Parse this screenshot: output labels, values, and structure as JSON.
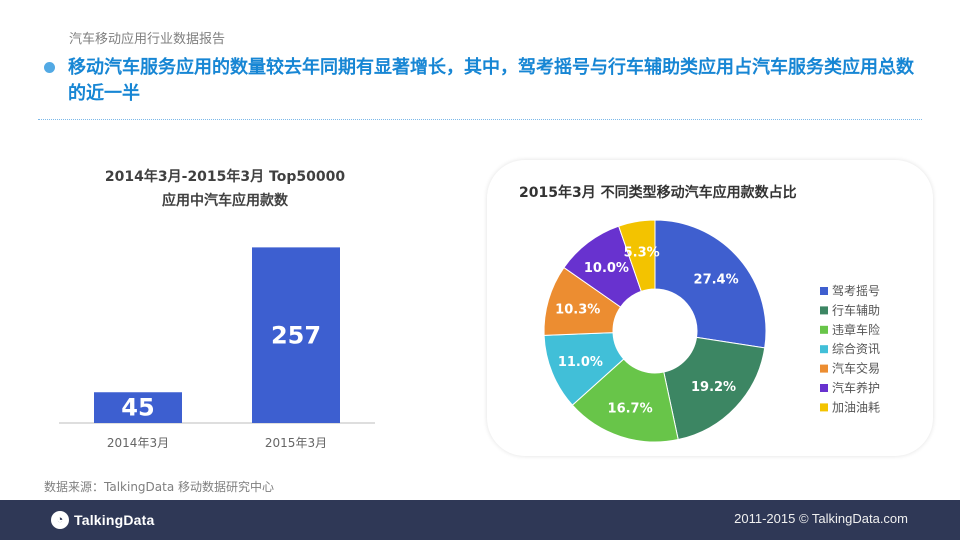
{
  "header": {
    "report_label": "汽车移动应用行业数据报告",
    "headline": "移动汽车服务应用的数量较去年同期有显著增长，其中，驾考摇号与行车辅助类应用占汽车服务类应用总数的近一半"
  },
  "footer": {
    "source": "数据来源：TalkingData 移动数据研究中心",
    "brand": "TalkingData",
    "copyright": "2011-2015 © TalkingData.com"
  },
  "colors": {
    "accent": "#1786d4",
    "bar": "#3d5fd0",
    "footer_bg": "#2f3856"
  },
  "chart_data": [
    {
      "type": "bar",
      "title": "2014年3月-2015年3月 Top50000",
      "subtitle": "应用中汽车应用款数",
      "categories": [
        "2014年3月",
        "2015年3月"
      ],
      "values": [
        45,
        257
      ],
      "data_labels": [
        "45",
        "257"
      ],
      "xlabel": "",
      "ylabel": "",
      "ylim": [
        0,
        300
      ],
      "grid": false,
      "color": "#3d5fd0"
    },
    {
      "type": "pie",
      "title": "2015年3月 不同类型移动汽车应用款数占比",
      "donut": true,
      "legend_position": "right",
      "slices": [
        {
          "label": "驾考摇号",
          "value": 27.4,
          "display": "27.4%",
          "color": "#3f5fcf"
        },
        {
          "label": "行车辅助",
          "value": 19.2,
          "display": "19.2%",
          "color": "#3c8663"
        },
        {
          "label": "违章车险",
          "value": 16.7,
          "display": "16.7%",
          "color": "#68c549"
        },
        {
          "label": "综合资讯",
          "value": 11.0,
          "display": "11.0%",
          "color": "#41bfd8"
        },
        {
          "label": "汽车交易",
          "value": 10.3,
          "display": "10.3%",
          "color": "#ec8d31"
        },
        {
          "label": "汽车养护",
          "value": 10.0,
          "display": "10.0%",
          "color": "#6832cf"
        },
        {
          "label": "加油油耗",
          "value": 5.3,
          "display": "5.3%",
          "color": "#f3c300"
        }
      ]
    }
  ]
}
